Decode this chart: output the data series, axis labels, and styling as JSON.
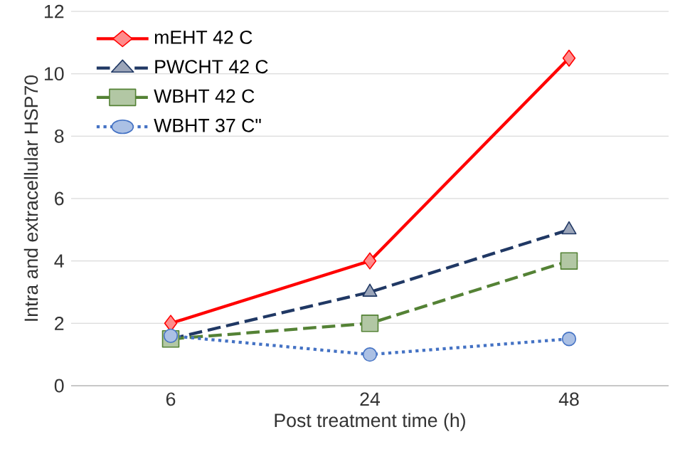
{
  "chart_data": {
    "type": "line",
    "xlabel": "Post treatment time (h)",
    "ylabel": "Intra and extracellular HSP70",
    "categories": [
      "6",
      "24",
      "48"
    ],
    "ylim": [
      0,
      12
    ],
    "yticks": [
      0,
      2,
      4,
      6,
      8,
      10,
      12
    ],
    "grid": "y",
    "legend": "top left",
    "series": [
      {
        "name": "mEHT 42 C",
        "color": "#ff0000",
        "marker": "diamond",
        "line_style": "solid",
        "values": [
          2,
          4,
          10.5
        ]
      },
      {
        "name": "PWCHT 42 C",
        "color": "#203864",
        "marker": "triangle",
        "line_style": "dashed",
        "values": [
          1.5,
          3,
          5
        ]
      },
      {
        "name": "WBHT 42 C",
        "color": "#548235",
        "marker": "square",
        "line_style": "dashed",
        "values": [
          1.5,
          2,
          4
        ]
      },
      {
        "name": "WBHT 37 C\"",
        "color": "#4472c4",
        "marker": "circle",
        "line_style": "dotted",
        "values": [
          1.6,
          1.0,
          1.5
        ]
      }
    ]
  }
}
